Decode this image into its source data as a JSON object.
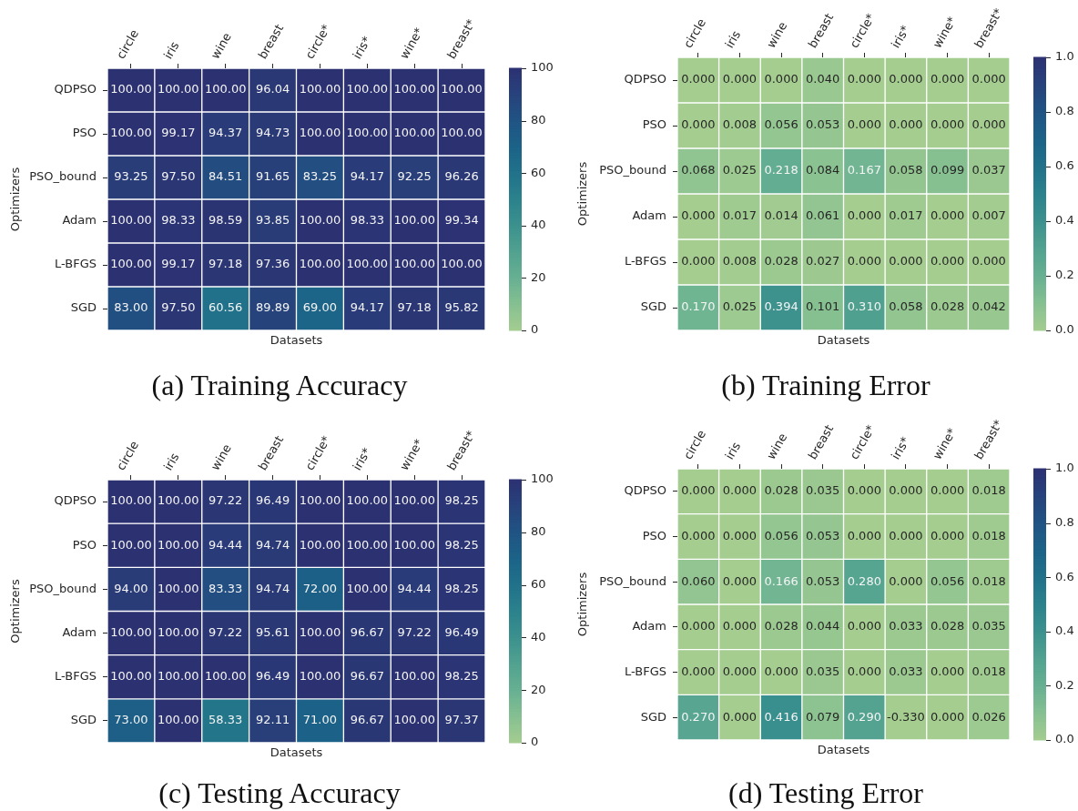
{
  "chart_data": [
    {
      "type": "heatmap",
      "title": "(a) Training Accuracy",
      "xlabel": "Datasets",
      "ylabel": "Optimizers",
      "categories": [
        "circle",
        "iris",
        "wine",
        "breast",
        "circle*",
        "iris*",
        "wine*",
        "breast*"
      ],
      "y_categories": [
        "QDPSO",
        "PSO",
        "PSO_bound",
        "Adam",
        "L-BFGS",
        "SGD"
      ],
      "cells": [
        [
          100,
          100,
          100,
          96.04,
          100,
          100,
          100,
          100
        ],
        [
          100,
          99.17,
          94.37,
          94.73,
          100,
          100,
          100,
          100
        ],
        [
          93.25,
          97.5,
          84.51,
          91.65,
          83.25,
          94.17,
          92.25,
          96.26
        ],
        [
          100,
          98.33,
          98.59,
          93.85,
          100,
          98.33,
          100,
          99.34
        ],
        [
          100,
          99.17,
          97.18,
          97.36,
          100,
          100,
          100,
          100
        ],
        [
          83,
          97.5,
          60.56,
          89.89,
          69,
          94.17,
          97.18,
          95.82
        ]
      ],
      "cell_labels": [
        [
          "100.00",
          "100.00",
          "100.00",
          "96.04",
          "100.00",
          "100.00",
          "100.00",
          "100.00"
        ],
        [
          "100.00",
          "99.17",
          "94.37",
          "94.73",
          "100.00",
          "100.00",
          "100.00",
          "100.00"
        ],
        [
          "93.25",
          "97.50",
          "84.51",
          "91.65",
          "83.25",
          "94.17",
          "92.25",
          "96.26"
        ],
        [
          "100.00",
          "98.33",
          "98.59",
          "93.85",
          "100.00",
          "98.33",
          "100.00",
          "99.34"
        ],
        [
          "100.00",
          "99.17",
          "97.18",
          "97.36",
          "100.00",
          "100.00",
          "100.00",
          "100.00"
        ],
        [
          "83.00",
          "97.50",
          "60.56",
          "89.89",
          "69.00",
          "94.17",
          "97.18",
          "95.82"
        ]
      ],
      "clim": [
        0,
        100
      ],
      "cticks": [
        0,
        20,
        40,
        60,
        80,
        100
      ]
    },
    {
      "type": "heatmap",
      "title": "(b) Training Error",
      "xlabel": "Datasets",
      "ylabel": "Optimizers",
      "categories": [
        "circle",
        "iris",
        "wine",
        "breast",
        "circle*",
        "iris*",
        "wine*",
        "breast*"
      ],
      "y_categories": [
        "QDPSO",
        "PSO",
        "PSO_bound",
        "Adam",
        "L-BFGS",
        "SGD"
      ],
      "cells": [
        [
          0,
          0,
          0,
          0.04,
          0,
          0,
          0,
          0
        ],
        [
          0,
          0.008,
          0.056,
          0.053,
          0,
          0,
          0,
          0
        ],
        [
          0.068,
          0.025,
          0.218,
          0.084,
          0.167,
          0.058,
          0.099,
          0.037
        ],
        [
          0,
          0.017,
          0.014,
          0.061,
          0,
          0.017,
          0,
          0.007
        ],
        [
          0,
          0.008,
          0.028,
          0.027,
          0,
          0,
          0,
          0
        ],
        [
          0.17,
          0.025,
          0.394,
          0.101,
          0.31,
          0.058,
          0.028,
          0.042
        ]
      ],
      "cell_labels": [
        [
          "0.000",
          "0.000",
          "0.000",
          "0.040",
          "0.000",
          "0.000",
          "0.000",
          "0.000"
        ],
        [
          "0.000",
          "0.008",
          "0.056",
          "0.053",
          "0.000",
          "0.000",
          "0.000",
          "0.000"
        ],
        [
          "0.068",
          "0.025",
          "0.218",
          "0.084",
          "0.167",
          "0.058",
          "0.099",
          "0.037"
        ],
        [
          "0.000",
          "0.017",
          "0.014",
          "0.061",
          "0.000",
          "0.017",
          "0.000",
          "0.007"
        ],
        [
          "0.000",
          "0.008",
          "0.028",
          "0.027",
          "0.000",
          "0.000",
          "0.000",
          "0.000"
        ],
        [
          "0.170",
          "0.025",
          "0.394",
          "0.101",
          "0.310",
          "0.058",
          "0.028",
          "0.042"
        ]
      ],
      "clim": [
        0,
        1
      ],
      "cticks": [
        {
          "value": 0,
          "label": "0.0"
        },
        {
          "value": 0.2,
          "label": "0.2"
        },
        {
          "value": 0.4,
          "label": "0.4"
        },
        {
          "value": 0.6,
          "label": "0.6"
        },
        {
          "value": 0.8,
          "label": "0.8"
        },
        {
          "value": 1,
          "label": "1.0"
        }
      ]
    },
    {
      "type": "heatmap",
      "title": "(c) Testing Accuracy",
      "xlabel": "Datasets",
      "ylabel": "Optimizers",
      "categories": [
        "circle",
        "iris",
        "wine",
        "breast",
        "circle*",
        "iris*",
        "wine*",
        "breast*"
      ],
      "y_categories": [
        "QDPSO",
        "PSO",
        "PSO_bound",
        "Adam",
        "L-BFGS",
        "SGD"
      ],
      "cells": [
        [
          100,
          100,
          97.22,
          96.49,
          100,
          100,
          100,
          98.25
        ],
        [
          100,
          100,
          94.44,
          94.74,
          100,
          100,
          100,
          98.25
        ],
        [
          94,
          100,
          83.33,
          94.74,
          72,
          100,
          94.44,
          98.25
        ],
        [
          100,
          100,
          97.22,
          95.61,
          100,
          96.67,
          97.22,
          96.49
        ],
        [
          100,
          100,
          100,
          96.49,
          100,
          96.67,
          100,
          98.25
        ],
        [
          73,
          100,
          58.33,
          92.11,
          71,
          96.67,
          100,
          97.37
        ]
      ],
      "cell_labels": [
        [
          "100.00",
          "100.00",
          "97.22",
          "96.49",
          "100.00",
          "100.00",
          "100.00",
          "98.25"
        ],
        [
          "100.00",
          "100.00",
          "94.44",
          "94.74",
          "100.00",
          "100.00",
          "100.00",
          "98.25"
        ],
        [
          "94.00",
          "100.00",
          "83.33",
          "94.74",
          "72.00",
          "100.00",
          "94.44",
          "98.25"
        ],
        [
          "100.00",
          "100.00",
          "97.22",
          "95.61",
          "100.00",
          "96.67",
          "97.22",
          "96.49"
        ],
        [
          "100.00",
          "100.00",
          "100.00",
          "96.49",
          "100.00",
          "96.67",
          "100.00",
          "98.25"
        ],
        [
          "73.00",
          "100.00",
          "58.33",
          "92.11",
          "71.00",
          "96.67",
          "100.00",
          "97.37"
        ]
      ],
      "clim": [
        0,
        100
      ],
      "cticks": [
        0,
        20,
        40,
        60,
        80,
        100
      ]
    },
    {
      "type": "heatmap",
      "title": "(d) Testing Error",
      "xlabel": "Datasets",
      "ylabel": "Optimizers",
      "categories": [
        "circle",
        "iris",
        "wine",
        "breast",
        "circle*",
        "iris*",
        "wine*",
        "breast*"
      ],
      "y_categories": [
        "QDPSO",
        "PSO",
        "PSO_bound",
        "Adam",
        "L-BFGS",
        "SGD"
      ],
      "cells": [
        [
          0,
          0,
          0.028,
          0.035,
          0,
          0,
          0,
          0.018
        ],
        [
          0,
          0,
          0.056,
          0.053,
          0,
          0,
          0,
          0.018
        ],
        [
          0.06,
          0,
          0.166,
          0.053,
          0.28,
          0,
          0.056,
          0.018
        ],
        [
          0,
          0,
          0.028,
          0.044,
          0,
          0.033,
          0.028,
          0.035
        ],
        [
          0,
          0,
          0,
          0.035,
          0,
          0.033,
          0,
          0.018
        ],
        [
          0.27,
          0,
          0.416,
          0.079,
          0.29,
          -0.33,
          0,
          0.026
        ]
      ],
      "cell_labels": [
        [
          "0.000",
          "0.000",
          "0.028",
          "0.035",
          "0.000",
          "0.000",
          "0.000",
          "0.018"
        ],
        [
          "0.000",
          "0.000",
          "0.056",
          "0.053",
          "0.000",
          "0.000",
          "0.000",
          "0.018"
        ],
        [
          "0.060",
          "0.000",
          "0.166",
          "0.053",
          "0.280",
          "0.000",
          "0.056",
          "0.018"
        ],
        [
          "0.000",
          "0.000",
          "0.028",
          "0.044",
          "0.000",
          "0.033",
          "0.028",
          "0.035"
        ],
        [
          "0.000",
          "0.000",
          "0.000",
          "0.035",
          "0.000",
          "0.033",
          "0.000",
          "0.018"
        ],
        [
          "0.270",
          "0.000",
          "0.416",
          "0.079",
          "0.290",
          "-0.330",
          "0.000",
          "0.026"
        ]
      ],
      "clim": [
        0,
        1
      ],
      "cticks": [
        {
          "value": 0,
          "label": "0.0"
        },
        {
          "value": 0.2,
          "label": "0.2"
        },
        {
          "value": 0.4,
          "label": "0.4"
        },
        {
          "value": 0.6,
          "label": "0.6"
        },
        {
          "value": 0.8,
          "label": "0.8"
        },
        {
          "value": 1,
          "label": "1.0"
        }
      ]
    }
  ]
}
